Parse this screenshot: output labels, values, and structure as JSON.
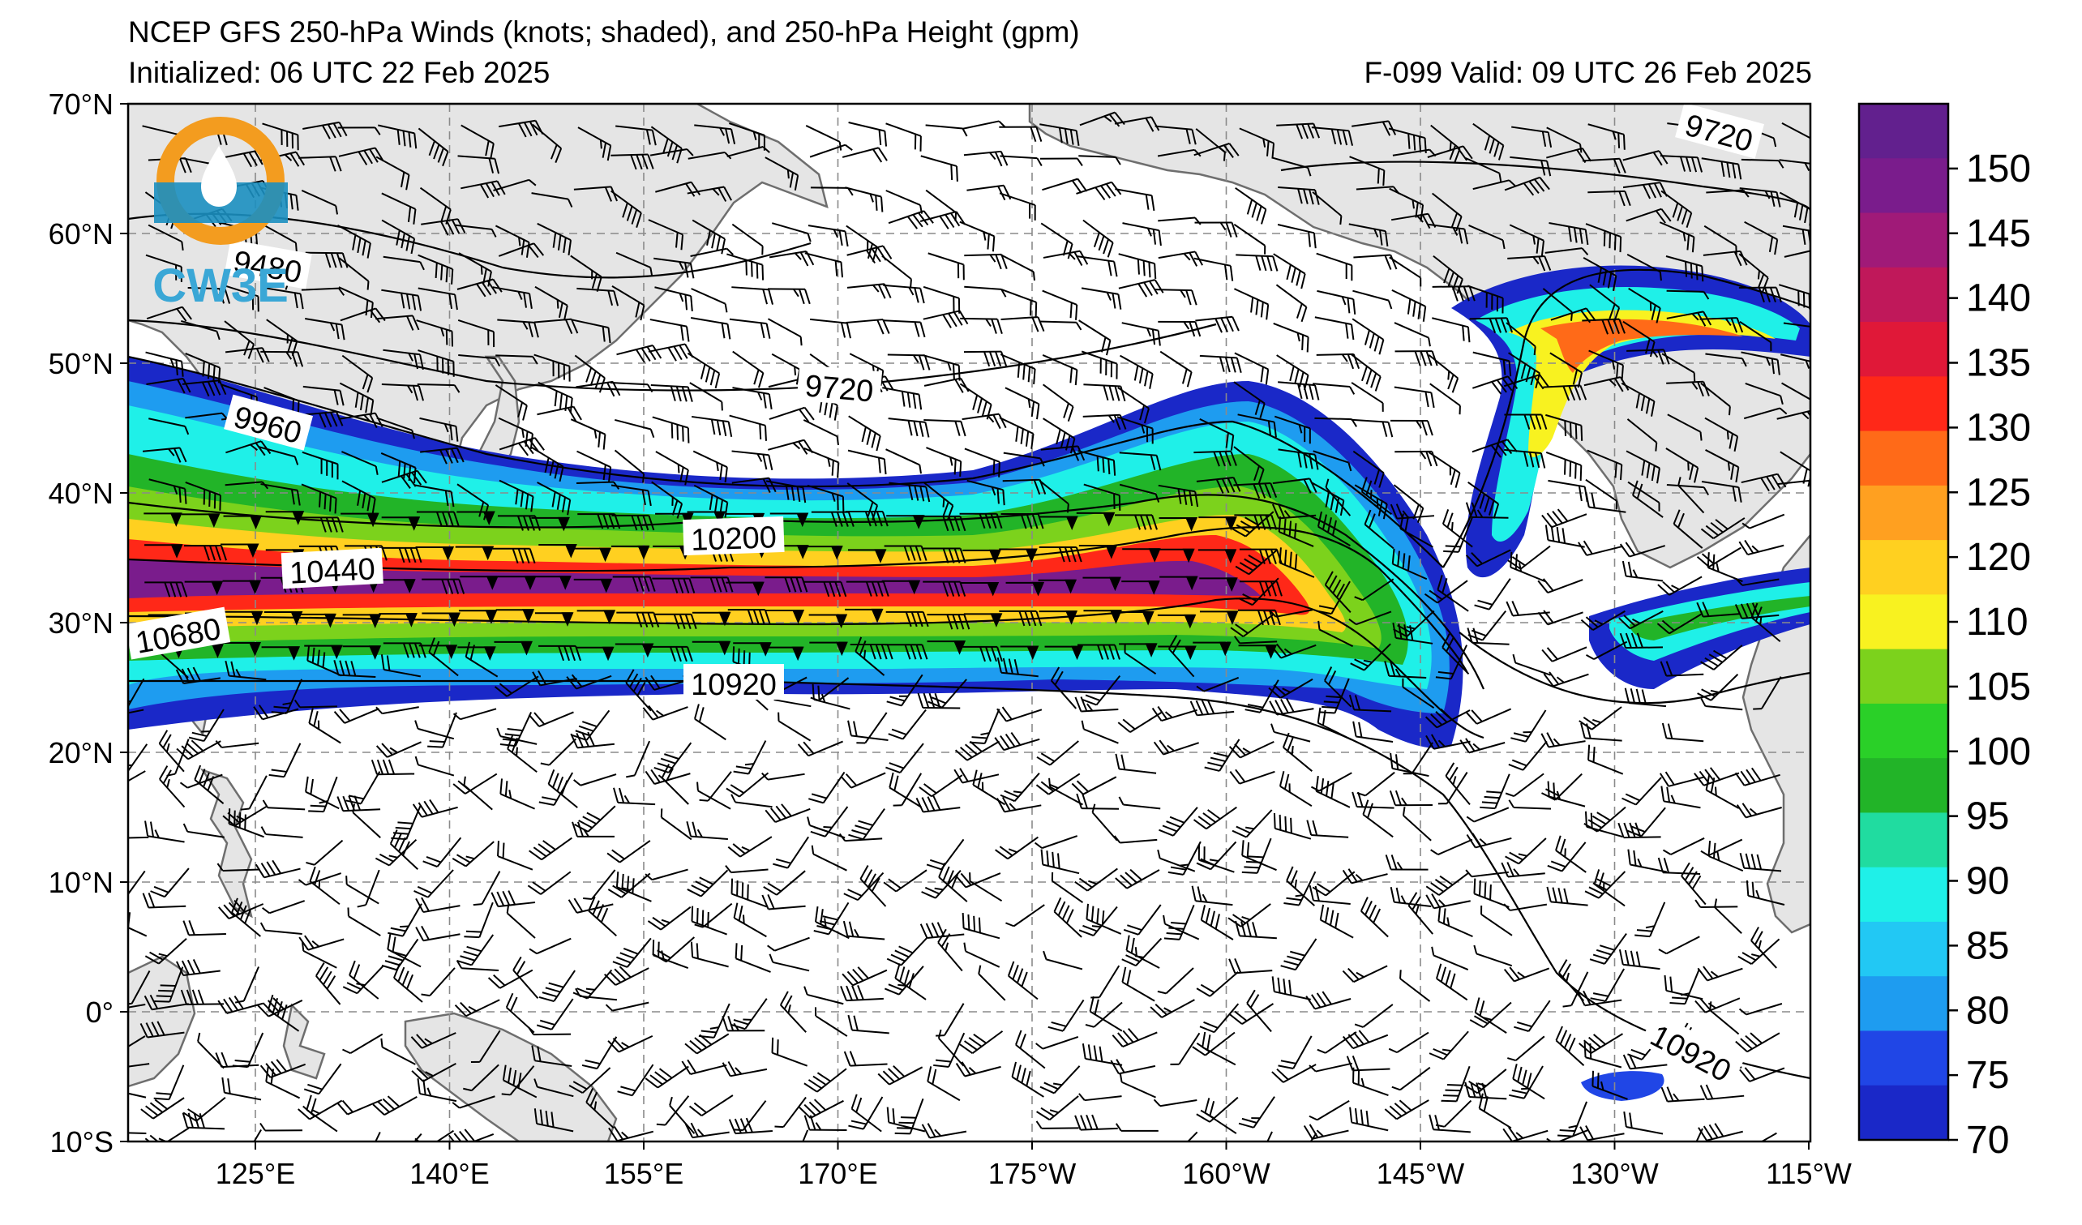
{
  "title_line1": "NCEP GFS 250-hPa Winds (knots; shaded), and 250-hPa Height (gpm)",
  "title_line2_left": "Initialized: 06 UTC 22 Feb 2025",
  "title_line2_right": "F-099  Valid: 09 UTC 26 Feb 2025",
  "logo": {
    "text": "CW3E",
    "colors": {
      "ring": "#f39c1f",
      "water": "#1b8fc0",
      "text": "#3aa7d6"
    }
  },
  "map": {
    "lon_ticks": [
      "125°E",
      "140°E",
      "155°E",
      "170°E",
      "175°W",
      "160°W",
      "145°W",
      "130°W",
      "115°W"
    ],
    "lat_ticks": [
      "70°N",
      "60°N",
      "50°N",
      "40°N",
      "30°N",
      "20°N",
      "10°N",
      "0°",
      "10°S"
    ],
    "land_color": "#e5e5e5",
    "coast_color": "#6e6e6e"
  },
  "contour_labels": [
    "9720",
    "9480",
    "9960",
    "10200",
    "10440",
    "10680",
    "10920",
    "9720",
    "10920"
  ],
  "colorbar": {
    "ticks": [
      "70",
      "75",
      "80",
      "85",
      "90",
      "95",
      "100",
      "105",
      "110",
      "120",
      "125",
      "130",
      "135",
      "140",
      "145",
      "150"
    ],
    "colors": [
      "#1a28c8",
      "#2046e6",
      "#1e9cf0",
      "#22c8f4",
      "#1ff0e8",
      "#20dca0",
      "#22b428",
      "#2ad028",
      "#7cd21c",
      "#f8f220",
      "#ffd020",
      "#ffa020",
      "#ff6a18",
      "#ff2818",
      "#e01838",
      "#c0185a",
      "#a01a78",
      "#7a1c8c",
      "#62208e"
    ]
  }
}
